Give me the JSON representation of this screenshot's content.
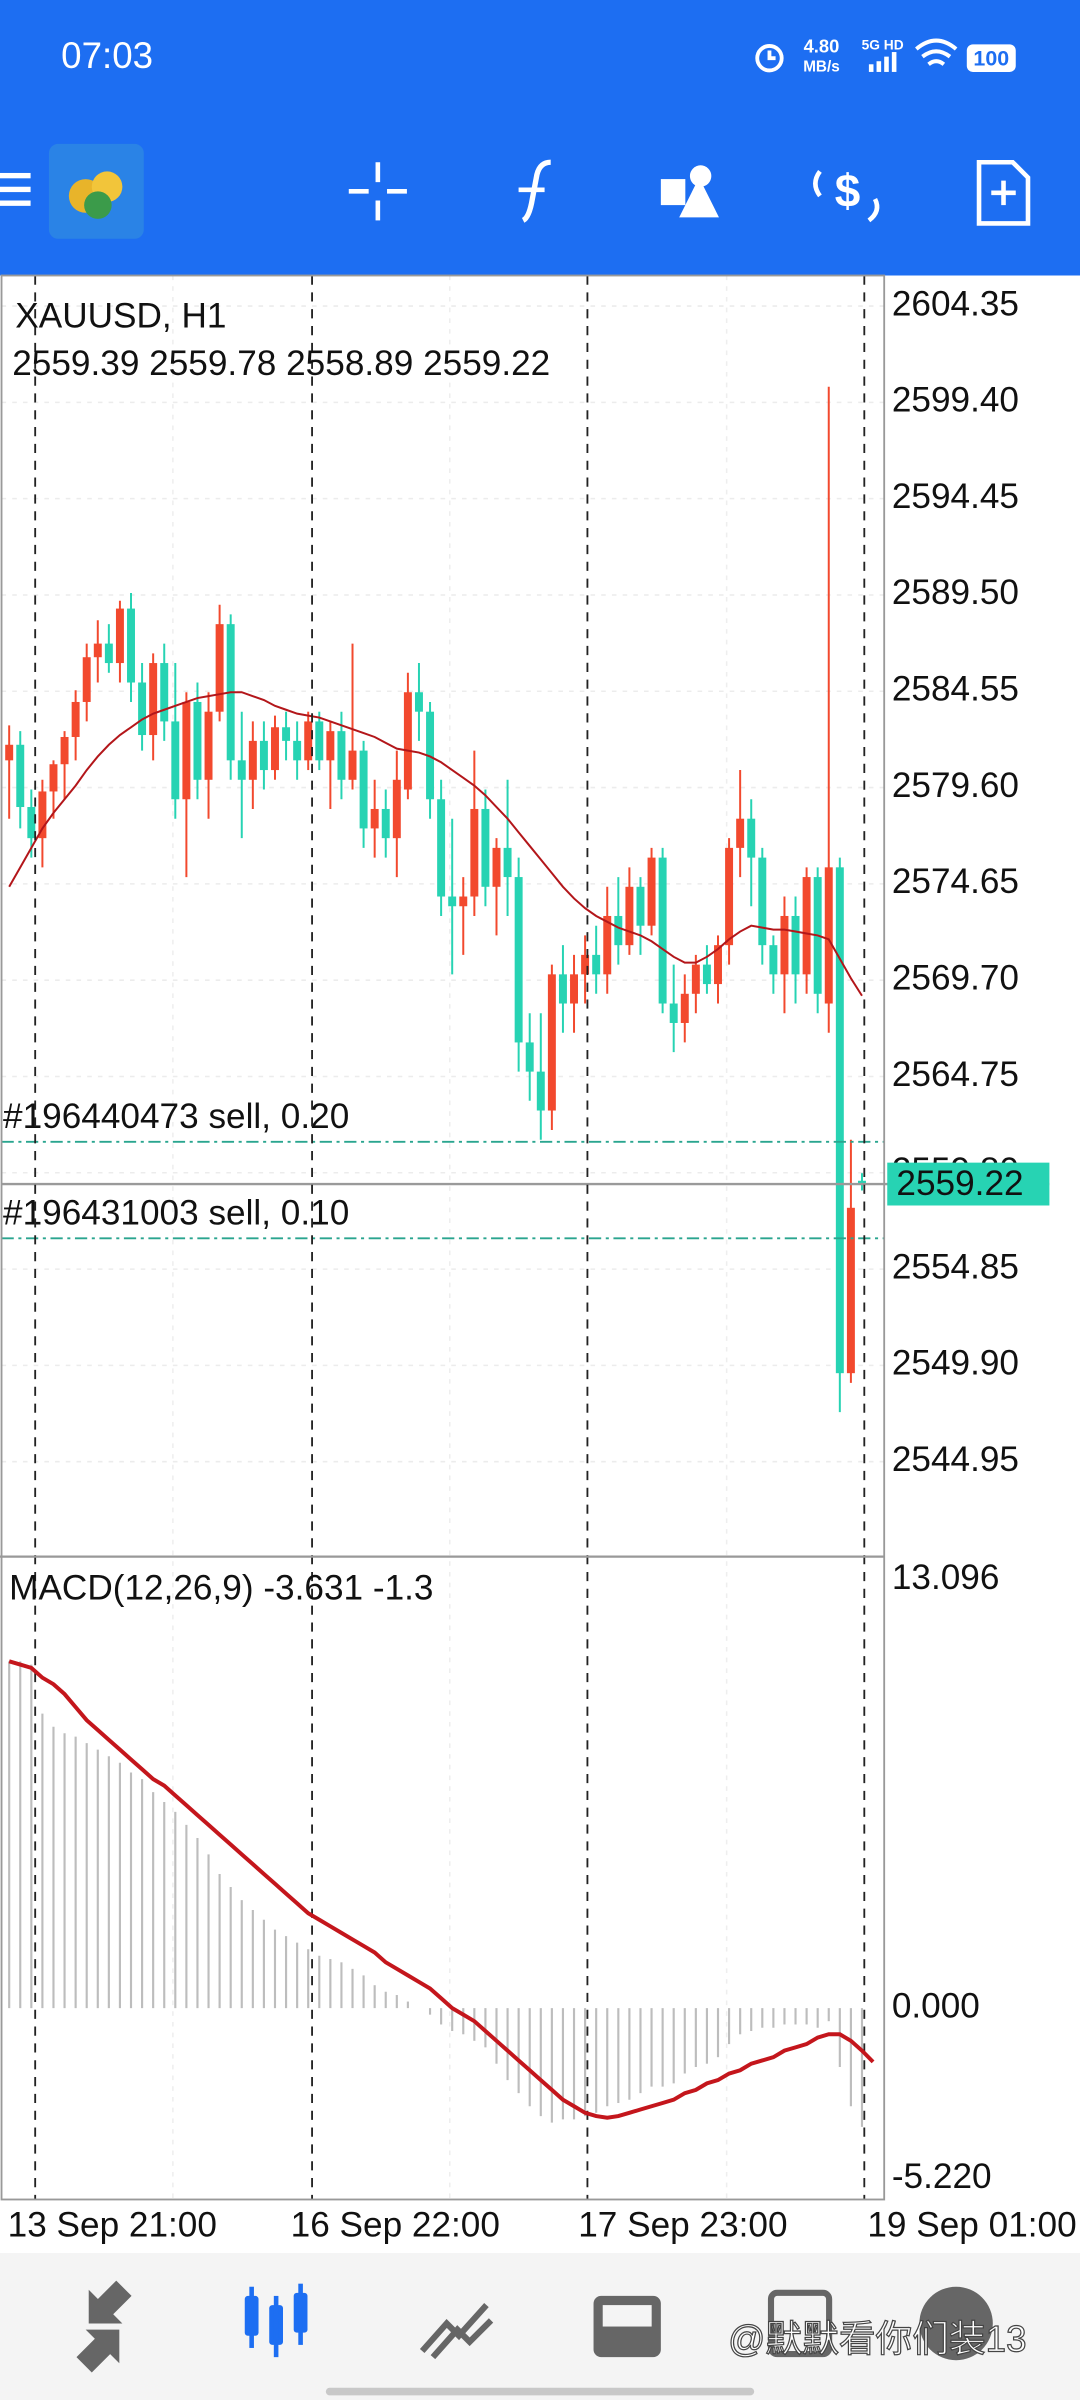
{
  "status_bar": {
    "time": "07:03",
    "speed": "4.80",
    "speed_unit": "MB/s",
    "network": "5G HD",
    "battery": "100"
  },
  "chart_data": [
    {
      "type": "candlestick",
      "title": "XAUUSD, H1",
      "x_labels": [
        "13 Sep 21:00",
        "16 Sep 22:00",
        "17 Sep 23:00",
        "19 Sep 01:00"
      ],
      "up_color": "#f2492e",
      "down_color": "#27d3b3",
      "ma_color": "#b3161a",
      "ylim": [
        2540.07,
        2605.92
      ],
      "yticks": [
        2604.35,
        {
          "value": 2599.4,
          "label": "2599.40"
        },
        2594.45,
        {
          "value": 2589.5,
          "label": "2589.50"
        },
        2584.55,
        {
          "value": 2579.6,
          "label": "2579.60"
        },
        2574.65,
        {
          "value": 2569.7,
          "label": "2569.70"
        },
        2564.75,
        {
          "value": 2559.8,
          "label": "2559.80"
        },
        2554.85,
        {
          "value": 2549.9,
          "label": "2549.90"
        },
        2544.95
      ],
      "grid": true,
      "open": [
        2581.0,
        2581.8,
        2578.6,
        2577.0,
        2579.4,
        2580.8,
        2582.2,
        2584.0,
        2586.3,
        2587.0,
        2586.0,
        2588.8,
        2585.0,
        2582.3,
        2586.0,
        2583.0,
        2579.0,
        2584.0,
        2580.0,
        2583.5,
        2588.0,
        2581.0,
        2580.0,
        2582.0,
        2580.5,
        2582.7,
        2582.0,
        2581.0,
        2583.0,
        2581.0,
        2582.5,
        2580.0,
        2581.5,
        2577.5,
        2578.5,
        2577.0,
        2579.5,
        2584.5,
        2583.5,
        2579.0,
        2574.0,
        2573.5,
        2574.0,
        2578.5,
        2574.5,
        2576.5,
        2575.0,
        2566.5,
        2565.0,
        2563.0,
        2570.0,
        2568.5,
        2570.0,
        2571.0,
        2570.0,
        2573.0,
        2571.5,
        2574.5,
        2572.5,
        2576.0,
        2568.5,
        2567.5,
        2569.0,
        2570.5,
        2569.5,
        2571.5,
        2576.5,
        2578.0,
        2576.0,
        2571.5,
        2570.0,
        2573.0,
        2570.0,
        2575.0,
        2568.5,
        2575.5,
        2549.5,
        2559.39
      ],
      "high": [
        2582.8,
        2582.5,
        2579.5,
        2580.0,
        2581.0,
        2582.5,
        2584.6,
        2587.0,
        2588.2,
        2588.0,
        2589.2,
        2589.6,
        2586.0,
        2586.5,
        2587.0,
        2586.0,
        2584.5,
        2585.0,
        2584.5,
        2589.0,
        2588.5,
        2583.5,
        2583.0,
        2583.0,
        2583.3,
        2583.5,
        2583.0,
        2583.5,
        2583.5,
        2583.0,
        2583.5,
        2587.0,
        2582.0,
        2580.0,
        2579.5,
        2581.5,
        2585.5,
        2586.0,
        2584.0,
        2580.0,
        2578.0,
        2575.0,
        2581.5,
        2579.5,
        2577.0,
        2580.0,
        2576.0,
        2568.0,
        2568.0,
        2570.5,
        2571.5,
        2571.0,
        2572.0,
        2572.5,
        2574.5,
        2575.0,
        2575.5,
        2575.0,
        2576.5,
        2576.5,
        2570.5,
        2570.0,
        2571.0,
        2571.5,
        2572.0,
        2577.0,
        2580.5,
        2579.0,
        2576.5,
        2572.0,
        2574.0,
        2574.0,
        2575.5,
        2575.5,
        2600.2,
        2576.0,
        2561.5,
        2559.78
      ],
      "low": [
        2578.0,
        2577.5,
        2576.0,
        2575.5,
        2578.0,
        2579.0,
        2581.0,
        2583.0,
        2585.0,
        2585.5,
        2585.0,
        2584.0,
        2581.5,
        2581.0,
        2582.0,
        2578.0,
        2575.0,
        2579.0,
        2578.0,
        2583.0,
        2580.0,
        2577.0,
        2578.5,
        2579.5,
        2580.0,
        2581.0,
        2580.0,
        2580.5,
        2580.5,
        2578.5,
        2579.0,
        2579.5,
        2576.5,
        2576.0,
        2576.0,
        2575.0,
        2579.0,
        2582.0,
        2578.0,
        2573.0,
        2570.0,
        2571.0,
        2573.0,
        2573.5,
        2572.0,
        2573.0,
        2565.0,
        2563.5,
        2561.5,
        2562.0,
        2567.0,
        2567.0,
        2568.5,
        2569.0,
        2569.0,
        2570.5,
        2571.0,
        2571.0,
        2572.0,
        2568.0,
        2566.0,
        2566.5,
        2568.0,
        2569.0,
        2568.5,
        2570.5,
        2575.0,
        2573.5,
        2570.5,
        2569.0,
        2568.0,
        2568.5,
        2569.0,
        2568.0,
        2567.0,
        2547.5,
        2549.0,
        2558.89
      ],
      "close": [
        2581.8,
        2578.6,
        2577.0,
        2579.4,
        2580.8,
        2582.2,
        2584.0,
        2586.3,
        2587.0,
        2586.0,
        2588.8,
        2585.0,
        2582.3,
        2586.0,
        2583.0,
        2579.0,
        2584.0,
        2580.0,
        2583.5,
        2588.0,
        2581.0,
        2580.0,
        2582.0,
        2580.5,
        2582.7,
        2582.0,
        2581.0,
        2583.0,
        2581.0,
        2582.5,
        2580.0,
        2581.5,
        2577.5,
        2578.5,
        2577.0,
        2580.0,
        2584.5,
        2583.5,
        2579.0,
        2574.0,
        2573.5,
        2574.0,
        2578.5,
        2574.5,
        2576.5,
        2575.0,
        2566.5,
        2565.0,
        2563.0,
        2570.0,
        2568.5,
        2570.0,
        2571.0,
        2570.0,
        2573.0,
        2571.5,
        2574.5,
        2572.5,
        2576.0,
        2568.5,
        2567.5,
        2569.0,
        2570.5,
        2569.5,
        2571.5,
        2576.5,
        2578.0,
        2576.0,
        2571.5,
        2570.0,
        2573.0,
        2570.0,
        2575.0,
        2569.0,
        2575.5,
        2549.5,
        2558.0,
        2559.22
      ],
      "ma": [
        2574.5,
        2575.5,
        2576.5,
        2577.5,
        2578.3,
        2579.0,
        2579.7,
        2580.5,
        2581.2,
        2581.8,
        2582.3,
        2582.7,
        2583.1,
        2583.4,
        2583.6,
        2583.8,
        2584.0,
        2584.2,
        2584.3,
        2584.4,
        2584.5,
        2584.5,
        2584.3,
        2584.1,
        2583.8,
        2583.6,
        2583.4,
        2583.3,
        2583.2,
        2583.0,
        2582.8,
        2582.6,
        2582.4,
        2582.2,
        2581.9,
        2581.6,
        2581.5,
        2581.4,
        2581.2,
        2580.9,
        2580.5,
        2580.1,
        2579.7,
        2579.2,
        2578.6,
        2578.0,
        2577.3,
        2576.6,
        2575.9,
        2575.2,
        2574.5,
        2573.9,
        2573.4,
        2573.0,
        2572.7,
        2572.4,
        2572.2,
        2572.0,
        2571.7,
        2571.3,
        2570.9,
        2570.6,
        2570.6,
        2570.9,
        2571.3,
        2571.8,
        2572.2,
        2572.5,
        2572.4,
        2572.3,
        2572.3,
        2572.2,
        2572.1,
        2572.0,
        2571.8,
        2570.8,
        2569.8,
        2568.9
      ],
      "orders": [
        {
          "label": "#196440473 sell, 0.20",
          "price": 2561.39
        },
        {
          "label": "#196431003 sell, 0.10",
          "price": 2556.43
        }
      ]
    },
    {
      "type": "macd",
      "title": "MACD(12,26,9)",
      "hist_color": "#bdbdbd",
      "signal_color": "#c4161c",
      "ylim": [
        -5.85,
        13.8
      ],
      "yticks": [
        13.096,
        {
          "value": 0,
          "label": "0.000"
        },
        {
          "value": -5.22,
          "label": "-5.220"
        }
      ],
      "main": [
        10.6,
        10.6,
        10.5,
        9.0,
        8.6,
        8.4,
        8.3,
        8.1,
        7.9,
        7.7,
        7.5,
        7.2,
        7.0,
        6.6,
        6.3,
        6.0,
        5.6,
        5.2,
        4.7,
        4.1,
        3.7,
        3.3,
        3.0,
        2.7,
        2.4,
        2.2,
        2.0,
        1.8,
        1.6,
        1.5,
        1.4,
        1.2,
        1.0,
        0.7,
        0.5,
        0.4,
        0.2,
        0.0,
        -0.2,
        -0.5,
        -0.7,
        -0.8,
        -1.0,
        -1.2,
        -1.7,
        -2.2,
        -2.6,
        -3.0,
        -3.3,
        -3.5,
        -3.4,
        -3.4,
        -3.3,
        -3.2,
        -3.0,
        -2.9,
        -2.8,
        -2.6,
        -2.4,
        -2.4,
        -2.3,
        -2.0,
        -1.8,
        -1.7,
        -1.5,
        -1.1,
        -0.8,
        -0.7,
        -0.6,
        -0.6,
        -0.5,
        -0.5,
        -0.5,
        -0.6,
        -0.4,
        -1.8,
        -3.0,
        -3.631
      ],
      "signal": [
        10.6,
        10.5,
        10.4,
        10.1,
        9.9,
        9.6,
        9.2,
        8.8,
        8.5,
        8.2,
        7.9,
        7.6,
        7.3,
        7.0,
        6.8,
        6.5,
        6.2,
        5.9,
        5.6,
        5.3,
        5.0,
        4.7,
        4.4,
        4.1,
        3.8,
        3.5,
        3.2,
        2.9,
        2.7,
        2.5,
        2.3,
        2.1,
        1.9,
        1.7,
        1.4,
        1.2,
        1.0,
        0.8,
        0.6,
        0.3,
        0.0,
        -0.2,
        -0.4,
        -0.7,
        -1.0,
        -1.3,
        -1.6,
        -1.9,
        -2.2,
        -2.5,
        -2.8,
        -3.0,
        -3.2,
        -3.3,
        -3.35,
        -3.3,
        -3.2,
        -3.1,
        -3.0,
        -2.9,
        -2.8,
        -2.6,
        -2.5,
        -2.3,
        -2.2,
        -2.0,
        -1.9,
        -1.7,
        -1.6,
        -1.5,
        -1.3,
        -1.2,
        -1.1,
        -0.9,
        -0.8,
        -0.8,
        -1.0,
        -1.3,
        -1.643
      ]
    }
  ],
  "watermark": "@默默看你们装13"
}
